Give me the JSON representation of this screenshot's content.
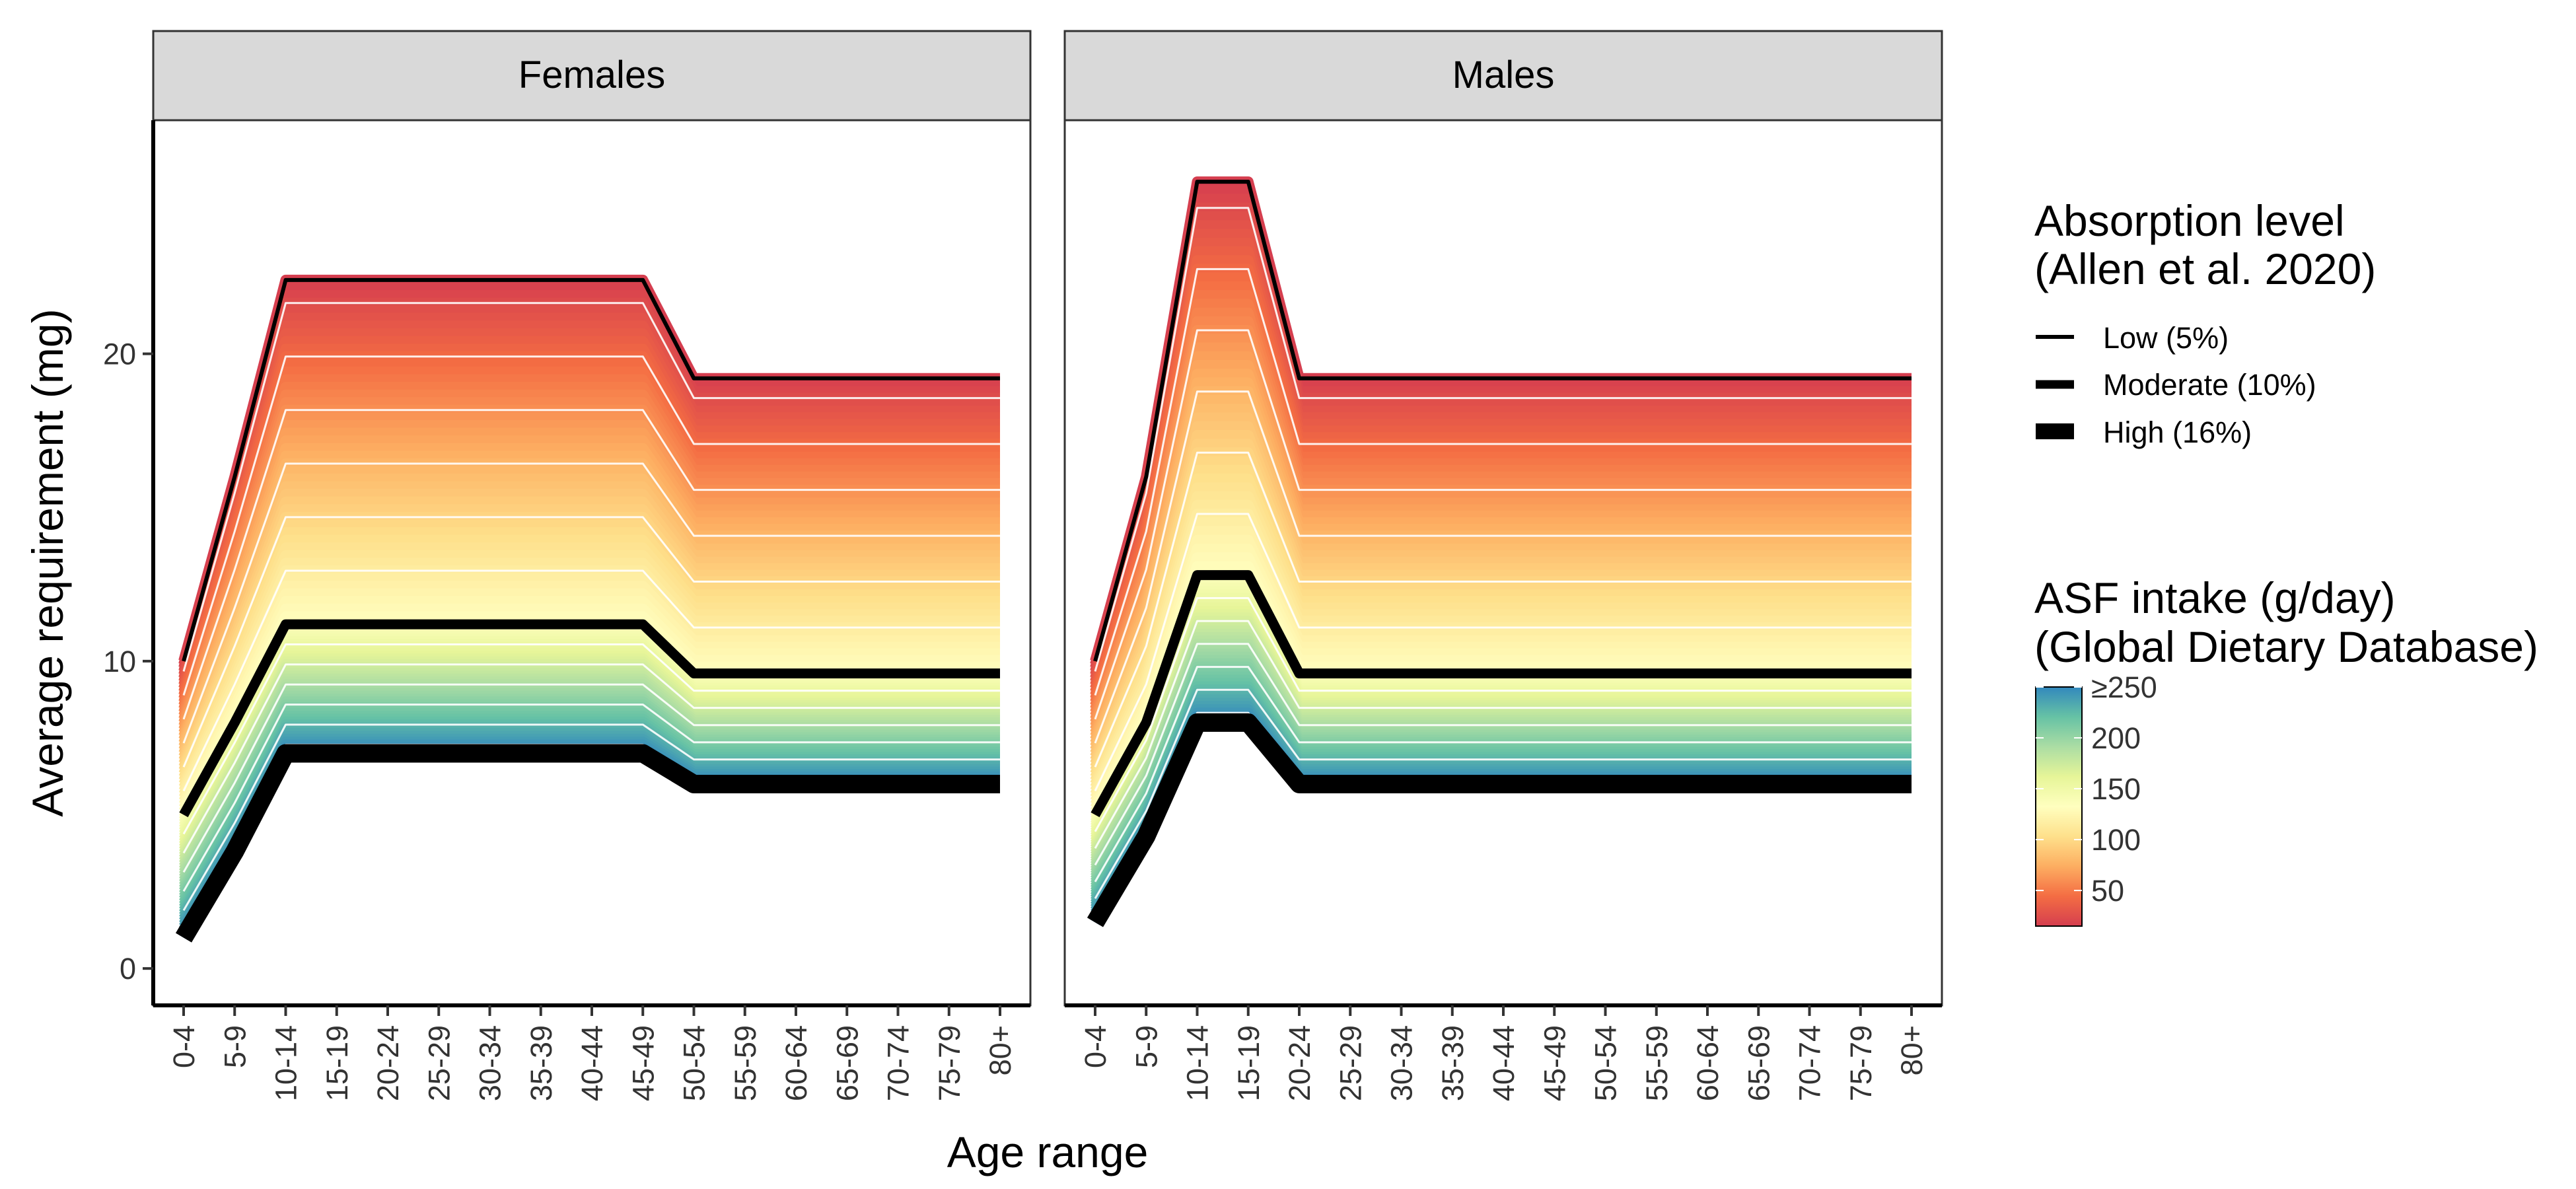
{
  "chart_data": {
    "type": "line",
    "facets": [
      {
        "label": "Females",
        "series": [
          {
            "name": "Low (5%)",
            "values": [
              10,
              16,
              22.4,
              22.4,
              22.4,
              22.4,
              22.4,
              22.4,
              22.4,
              22.4,
              19.2,
              19.2,
              19.2,
              19.2,
              19.2,
              19.2,
              19.2
            ]
          },
          {
            "name": "Moderate (10%)",
            "values": [
              5,
              8,
              11.2,
              11.2,
              11.2,
              11.2,
              11.2,
              11.2,
              11.2,
              11.2,
              9.6,
              9.6,
              9.6,
              9.6,
              9.6,
              9.6,
              9.6
            ]
          },
          {
            "name": "High (16%)",
            "values": [
              1,
              3.8,
              7,
              7,
              7,
              7,
              7,
              7,
              7,
              7,
              6,
              6,
              6,
              6,
              6,
              6,
              6
            ]
          }
        ]
      },
      {
        "label": "Males",
        "series": [
          {
            "name": "Low (5%)",
            "values": [
              10,
              16,
              25.6,
              25.6,
              19.2,
              19.2,
              19.2,
              19.2,
              19.2,
              19.2,
              19.2,
              19.2,
              19.2,
              19.2,
              19.2,
              19.2,
              19.2
            ]
          },
          {
            "name": "Moderate (10%)",
            "values": [
              5,
              8,
              12.8,
              12.8,
              9.6,
              9.6,
              9.6,
              9.6,
              9.6,
              9.6,
              9.6,
              9.6,
              9.6,
              9.6,
              9.6,
              9.6,
              9.6
            ]
          },
          {
            "name": "High (16%)",
            "values": [
              1.5,
              4.3,
              8,
              8,
              6,
              6,
              6,
              6,
              6,
              6,
              6,
              6,
              6,
              6,
              6,
              6,
              6
            ]
          }
        ]
      }
    ],
    "categories": [
      "0-4",
      "5-9",
      "10-14",
      "15-19",
      "20-24",
      "25-29",
      "30-34",
      "35-39",
      "40-44",
      "45-49",
      "50-54",
      "55-59",
      "60-64",
      "65-69",
      "70-74",
      "75-79",
      "80+"
    ],
    "xlabel": "Age range",
    "ylabel": "Average requirement (mg)",
    "ylim": [
      -1.2,
      27.6
    ],
    "yticks": [
      0,
      10,
      20
    ],
    "grid": false,
    "legend_absorption": {
      "title_line1": "Absorption level",
      "title_line2": "(Allen et al. 2020)",
      "items": [
        "Low (5%)",
        "Moderate (10%)",
        "High (16%)"
      ]
    },
    "legend_asf": {
      "title_line1": "ASF intake (g/day)",
      "title_line2": "(Global Dietary Database)",
      "ticks": [
        "≥250",
        "200",
        "150",
        "100",
        "50"
      ],
      "tick_values": [
        250,
        200,
        150,
        100,
        50
      ],
      "range": [
        15,
        250
      ],
      "palette": [
        "#D53E4F",
        "#F46D43",
        "#FDAE61",
        "#FEE08B",
        "#FFFFBF",
        "#E6F598",
        "#ABDDA4",
        "#66C2A5",
        "#3288BD"
      ]
    }
  }
}
